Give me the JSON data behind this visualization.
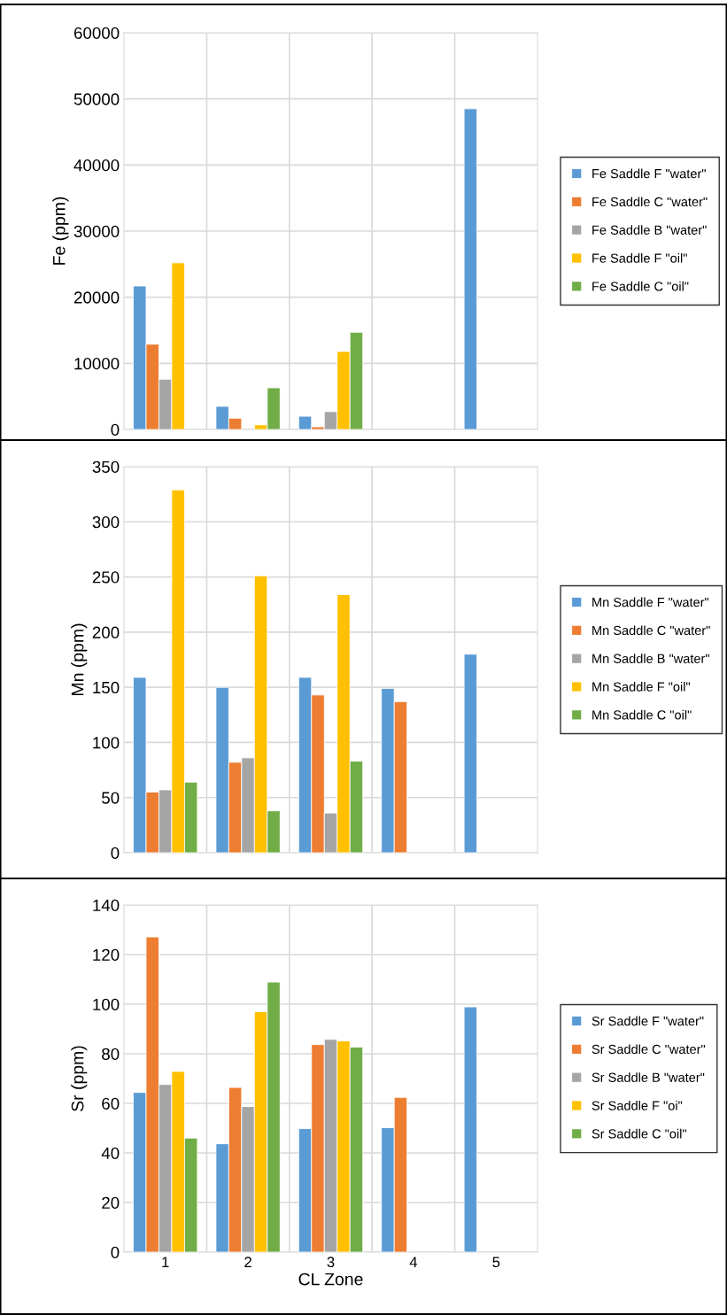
{
  "chart_data": [
    {
      "type": "bar",
      "ylabel": "Fe (ppm)",
      "categories": [
        "1",
        "2",
        "3",
        "4",
        "5"
      ],
      "ylim": [
        0,
        60000
      ],
      "yticks": [
        0,
        10000,
        20000,
        30000,
        40000,
        50000,
        60000
      ],
      "grid": true,
      "legend": "right",
      "tick_labels": "y",
      "series": [
        {
          "name": "Fe Saddle F \"water\"",
          "color": "#5b9bd5",
          "values": [
            21700,
            3500,
            2000,
            null,
            48500
          ]
        },
        {
          "name": "Fe Saddle C \"water\"",
          "color": "#ed7d31",
          "values": [
            12900,
            1700,
            400,
            null,
            null
          ]
        },
        {
          "name": "Fe Saddle B \"water\"",
          "color": "#a5a5a5",
          "values": [
            7600,
            null,
            2700,
            null,
            null
          ]
        },
        {
          "name": "Fe Saddle F \"oil\"",
          "color": "#ffc000",
          "values": [
            25200,
            700,
            11800,
            null,
            null
          ]
        },
        {
          "name": "Fe Saddle C \"oil\"",
          "color": "#70ad47",
          "values": [
            null,
            6300,
            14700,
            null,
            null
          ]
        }
      ]
    },
    {
      "type": "bar",
      "ylabel": "Mn (ppm)",
      "categories": [
        "1",
        "2",
        "3",
        "4",
        "5"
      ],
      "ylim": [
        0,
        350
      ],
      "yticks": [
        0,
        50,
        100,
        150,
        200,
        250,
        300,
        350
      ],
      "grid": true,
      "legend": "right",
      "tick_labels": "y",
      "series": [
        {
          "name": "Mn Saddle F \"water\"",
          "color": "#5b9bd5",
          "values": [
            159,
            150,
            159,
            149,
            180
          ]
        },
        {
          "name": "Mn Saddle C \"water\"",
          "color": "#ed7d31",
          "values": [
            55,
            82,
            143,
            137,
            null
          ]
        },
        {
          "name": "Mn Saddle B \"water\"",
          "color": "#a5a5a5",
          "values": [
            57,
            86,
            36,
            null,
            null
          ]
        },
        {
          "name": "Mn Saddle F \"oil\"",
          "color": "#ffc000",
          "values": [
            329,
            251,
            234,
            null,
            null
          ]
        },
        {
          "name": "Mn Saddle C \"oil\"",
          "color": "#70ad47",
          "values": [
            64,
            38,
            83,
            null,
            null
          ]
        }
      ]
    },
    {
      "type": "bar",
      "ylabel": "Sr (ppm)",
      "xlabel": "CL Zone",
      "categories": [
        "1",
        "2",
        "3",
        "4",
        "5"
      ],
      "ylim": [
        0,
        140
      ],
      "yticks": [
        0,
        20,
        40,
        60,
        80,
        100,
        120,
        140
      ],
      "grid": true,
      "legend": "right",
      "series": [
        {
          "name": "Sr Saddle F \"water\"",
          "color": "#5b9bd5",
          "values": [
            64.4,
            43.7,
            49.8,
            50.2,
            98.9
          ]
        },
        {
          "name": "Sr Saddle C \"water\"",
          "color": "#ed7d31",
          "values": [
            127.1,
            66.4,
            83.7,
            62.4,
            null
          ]
        },
        {
          "name": "Sr Saddle B \"water\"",
          "color": "#a5a5a5",
          "values": [
            67.6,
            58.7,
            85.8,
            null,
            null
          ]
        },
        {
          "name": "Sr Saddle F \"oi\"",
          "color": "#ffc000",
          "values": [
            72.9,
            97.0,
            85.2,
            null,
            null
          ]
        },
        {
          "name": "Sr Saddle C \"oil\"",
          "color": "#70ad47",
          "values": [
            46.0,
            108.9,
            82.7,
            null,
            null
          ]
        }
      ]
    }
  ]
}
